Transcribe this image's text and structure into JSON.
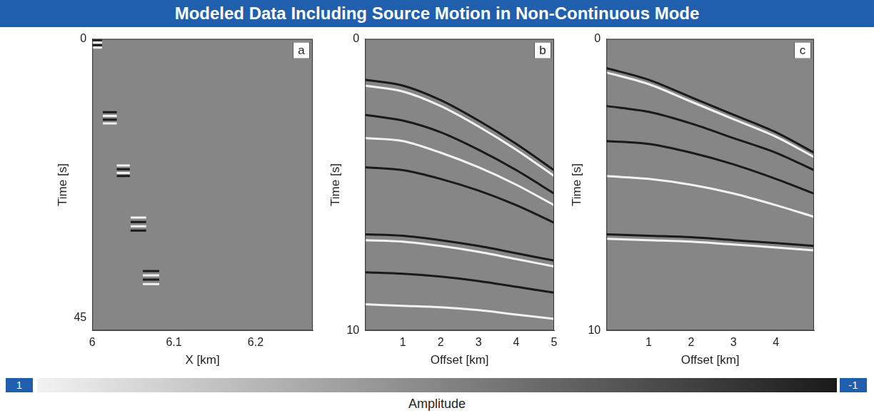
{
  "title": "Modeled Data Including Source Motion in Non-Continuous Mode",
  "chart_data": [
    {
      "type": "line",
      "panel": "a",
      "x_label": "X [km]",
      "y_label": "Time [s]",
      "xlim": [
        6,
        6.27
      ],
      "ylim": [
        47,
        0
      ],
      "xticks": [
        6,
        6.1,
        6.2
      ],
      "yticks": [
        0,
        45
      ],
      "grid": false,
      "series": [
        {
          "x": [
            6.0,
            6.012
          ],
          "values": [
            0.2,
            0.2
          ],
          "amplitude": -1
        },
        {
          "x": [
            6.0,
            6.012
          ],
          "values": [
            0.6,
            0.6
          ],
          "amplitude": 1
        },
        {
          "x": [
            6.0,
            6.012
          ],
          "values": [
            1.0,
            1.0
          ],
          "amplitude": -1
        },
        {
          "x": [
            6.0,
            6.012
          ],
          "values": [
            1.4,
            1.4
          ],
          "amplitude": 1
        },
        {
          "x": [
            6.013,
            6.03
          ],
          "values": [
            11.8,
            11.8
          ],
          "amplitude": -1
        },
        {
          "x": [
            6.013,
            6.03
          ],
          "values": [
            12.4,
            12.4
          ],
          "amplitude": 1
        },
        {
          "x": [
            6.013,
            6.03
          ],
          "values": [
            13.0,
            13.0
          ],
          "amplitude": -1
        },
        {
          "x": [
            6.013,
            6.03
          ],
          "values": [
            13.6,
            13.6
          ],
          "amplitude": 1
        },
        {
          "x": [
            6.03,
            6.046
          ],
          "values": [
            20.4,
            20.4
          ],
          "amplitude": 1
        },
        {
          "x": [
            6.03,
            6.046
          ],
          "values": [
            21.0,
            21.0
          ],
          "amplitude": -1
        },
        {
          "x": [
            6.03,
            6.046
          ],
          "values": [
            21.6,
            21.6
          ],
          "amplitude": 1
        },
        {
          "x": [
            6.03,
            6.046
          ],
          "values": [
            22.1,
            22.1
          ],
          "amplitude": -1
        },
        {
          "x": [
            6.047,
            6.066
          ],
          "values": [
            28.8,
            28.8
          ],
          "amplitude": 1
        },
        {
          "x": [
            6.047,
            6.066
          ],
          "values": [
            29.5,
            29.5
          ],
          "amplitude": -1
        },
        {
          "x": [
            6.047,
            6.066
          ],
          "values": [
            30.2,
            30.2
          ],
          "amplitude": 1
        },
        {
          "x": [
            6.047,
            6.066
          ],
          "values": [
            30.9,
            30.9
          ],
          "amplitude": -1
        },
        {
          "x": [
            6.062,
            6.082
          ],
          "values": [
            37.4,
            37.4
          ],
          "amplitude": -1
        },
        {
          "x": [
            6.062,
            6.082
          ],
          "values": [
            38.1,
            38.1
          ],
          "amplitude": 1
        },
        {
          "x": [
            6.062,
            6.082
          ],
          "values": [
            38.8,
            38.8
          ],
          "amplitude": -1
        },
        {
          "x": [
            6.062,
            6.082
          ],
          "values": [
            39.5,
            39.5
          ],
          "amplitude": 1
        }
      ]
    },
    {
      "type": "line",
      "panel": "b",
      "x_label": "Offset [km]",
      "y_label": "Time [s]",
      "xlim": [
        0,
        5
      ],
      "ylim": [
        10,
        0
      ],
      "xticks": [
        1,
        2,
        3,
        4,
        5
      ],
      "yticks": [
        0,
        10
      ],
      "grid": false,
      "series": [
        {
          "x": [
            0,
            1,
            2,
            3,
            4,
            5
          ],
          "values": [
            1.4,
            1.6,
            2.1,
            2.8,
            3.6,
            4.5
          ],
          "amplitude": -1
        },
        {
          "x": [
            0,
            1,
            2,
            3,
            4,
            5
          ],
          "values": [
            1.6,
            1.8,
            2.3,
            3.0,
            3.8,
            4.7
          ],
          "amplitude": 1
        },
        {
          "x": [
            0,
            1,
            2,
            3,
            4,
            5
          ],
          "values": [
            2.6,
            2.8,
            3.2,
            3.8,
            4.5,
            5.3
          ],
          "amplitude": -1
        },
        {
          "x": [
            0,
            1,
            2,
            3,
            4,
            5
          ],
          "values": [
            3.4,
            3.5,
            3.9,
            4.4,
            5.0,
            5.7
          ],
          "amplitude": 1
        },
        {
          "x": [
            0,
            1,
            2,
            3,
            4,
            5
          ],
          "values": [
            4.4,
            4.5,
            4.8,
            5.2,
            5.7,
            6.3
          ],
          "amplitude": -1
        },
        {
          "x": [
            0,
            1,
            2,
            3,
            4,
            5
          ],
          "values": [
            6.7,
            6.75,
            6.9,
            7.1,
            7.35,
            7.6
          ],
          "amplitude": -1
        },
        {
          "x": [
            0,
            1,
            2,
            3,
            4,
            5
          ],
          "values": [
            6.9,
            6.95,
            7.1,
            7.3,
            7.55,
            7.8
          ],
          "amplitude": 1
        },
        {
          "x": [
            0,
            1,
            2,
            3,
            4,
            5
          ],
          "values": [
            8.0,
            8.05,
            8.15,
            8.3,
            8.5,
            8.7
          ],
          "amplitude": -1
        },
        {
          "x": [
            0,
            1,
            2,
            3,
            4,
            5
          ],
          "values": [
            9.1,
            9.15,
            9.2,
            9.3,
            9.45,
            9.6
          ],
          "amplitude": 1
        }
      ]
    },
    {
      "type": "line",
      "panel": "c",
      "x_label": "Offset [km]",
      "y_label": "Time [s]",
      "xlim": [
        0,
        4.9
      ],
      "ylim": [
        10,
        0
      ],
      "xticks": [
        1,
        2,
        3,
        4
      ],
      "yticks": [
        0,
        10
      ],
      "grid": false,
      "series": [
        {
          "x": [
            0,
            1,
            2,
            3,
            4,
            4.9
          ],
          "values": [
            1.0,
            1.4,
            2.0,
            2.6,
            3.2,
            3.9
          ],
          "amplitude": -1
        },
        {
          "x": [
            0,
            1,
            2,
            3,
            4,
            4.9
          ],
          "values": [
            1.15,
            1.55,
            2.15,
            2.75,
            3.35,
            4.05
          ],
          "amplitude": 1
        },
        {
          "x": [
            0,
            1,
            2,
            3,
            4,
            4.9
          ],
          "values": [
            2.3,
            2.5,
            2.9,
            3.4,
            3.9,
            4.5
          ],
          "amplitude": -1
        },
        {
          "x": [
            0,
            1,
            2,
            3,
            4,
            4.9
          ],
          "values": [
            3.5,
            3.6,
            3.9,
            4.3,
            4.8,
            5.3
          ],
          "amplitude": -1
        },
        {
          "x": [
            0,
            1,
            2,
            3,
            4,
            4.9
          ],
          "values": [
            4.7,
            4.8,
            5.0,
            5.3,
            5.7,
            6.1
          ],
          "amplitude": 1
        },
        {
          "x": [
            0,
            1,
            2,
            3,
            4,
            4.9
          ],
          "values": [
            6.7,
            6.75,
            6.8,
            6.9,
            7.0,
            7.1
          ],
          "amplitude": -1
        },
        {
          "x": [
            0,
            1,
            2,
            3,
            4,
            4.9
          ],
          "values": [
            6.85,
            6.9,
            6.95,
            7.05,
            7.15,
            7.25
          ],
          "amplitude": 1
        }
      ]
    }
  ],
  "colorbar": {
    "range": [
      1,
      -1
    ],
    "ticks": [
      1,
      -1
    ],
    "colors": [
      "#f2f2f2",
      "#1a1a1a"
    ],
    "label": "Amplitude"
  }
}
